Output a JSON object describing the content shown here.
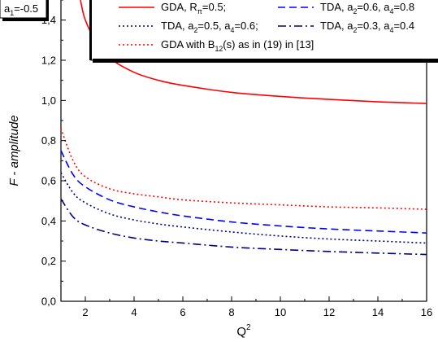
{
  "chart_data": {
    "type": "line",
    "title": "",
    "xlabel": "Q",
    "xlabel_sup": "2",
    "ylabel": "F - amplitude",
    "xlim": [
      1,
      16
    ],
    "ylim": [
      0.0,
      1.5
    ],
    "xticks": [
      2,
      4,
      6,
      8,
      10,
      12,
      14,
      16
    ],
    "xtick_labels": [
      "2",
      "4",
      "6",
      "8",
      "10",
      "12",
      "14",
      "16"
    ],
    "yticks": [
      0.0,
      0.2,
      0.4,
      0.6,
      0.8,
      1.0,
      1.2,
      1.4
    ],
    "ytick_labels": [
      "0,0",
      "0,2",
      "0,4",
      "0,6",
      "0,8",
      "1,0",
      "1,2",
      "1,4"
    ],
    "grid": false,
    "legend_position": "top-right",
    "annotation": {
      "parts": [
        {
          "t": "a",
          "s": "n"
        },
        {
          "t": "1",
          "s": "sub"
        },
        {
          "t": "=-0.5",
          "s": "n"
        }
      ]
    },
    "series": [
      {
        "name": "GDA, Rπ=0.5;",
        "legend_parts": [
          {
            "t": "GDA, R",
            "s": "n"
          },
          {
            "t": "π",
            "s": "sub"
          },
          {
            "t": "=0.5;",
            "s": "n"
          }
        ],
        "color": "#ff0000",
        "style": "solid",
        "x": [
          1.8,
          2.0,
          2.5,
          3,
          4,
          5,
          6,
          8,
          10,
          12,
          14,
          16
        ],
        "y": [
          1.5,
          1.4,
          1.28,
          1.21,
          1.14,
          1.1,
          1.075,
          1.04,
          1.02,
          1.005,
          0.993,
          0.985
        ]
      },
      {
        "name": "TDA, a2=0.6, a4=0.8",
        "legend_parts": [
          {
            "t": "TDA, a",
            "s": "n"
          },
          {
            "t": "2",
            "s": "sub"
          },
          {
            "t": "=0.6, a",
            "s": "n"
          },
          {
            "t": "4",
            "s": "sub"
          },
          {
            "t": "=0.8",
            "s": "n"
          }
        ],
        "color": "#0000ff",
        "style": "dashed",
        "x": [
          1,
          1.5,
          2,
          3,
          4,
          5,
          6,
          8,
          10,
          12,
          14,
          16
        ],
        "y": [
          0.75,
          0.63,
          0.57,
          0.505,
          0.47,
          0.445,
          0.425,
          0.395,
          0.375,
          0.36,
          0.35,
          0.34
        ]
      },
      {
        "name": "TDA, a2=0.5, a4=0.6;",
        "legend_parts": [
          {
            "t": "TDA, a",
            "s": "n"
          },
          {
            "t": "2",
            "s": "sub"
          },
          {
            "t": "=0.5, a",
            "s": "n"
          },
          {
            "t": "4",
            "s": "sub"
          },
          {
            "t": "=0.6;",
            "s": "n"
          }
        ],
        "color": "#000080",
        "style": "dotted",
        "x": [
          1,
          1.5,
          2,
          3,
          4,
          5,
          6,
          8,
          10,
          12,
          14,
          16
        ],
        "y": [
          0.64,
          0.54,
          0.49,
          0.435,
          0.405,
          0.385,
          0.37,
          0.345,
          0.325,
          0.31,
          0.3,
          0.29
        ]
      },
      {
        "name": "TDA, a2=0.3, a4=0.4",
        "legend_parts": [
          {
            "t": "TDA, a",
            "s": "n"
          },
          {
            "t": "2",
            "s": "sub"
          },
          {
            "t": "=0.3, a",
            "s": "n"
          },
          {
            "t": "4",
            "s": "sub"
          },
          {
            "t": "=0.4",
            "s": "n"
          }
        ],
        "color": "#000080",
        "style": "dashdot",
        "x": [
          1,
          1.5,
          2,
          3,
          4,
          5,
          6,
          8,
          10,
          12,
          14,
          16
        ],
        "y": [
          0.51,
          0.42,
          0.38,
          0.34,
          0.315,
          0.3,
          0.29,
          0.27,
          0.258,
          0.248,
          0.24,
          0.233
        ]
      },
      {
        "name": "GDA with B12(s) as in (19) in [13]",
        "legend_parts": [
          {
            "t": "GDA with B",
            "s": "n"
          },
          {
            "t": "12",
            "s": "sub"
          },
          {
            "t": "(s) as in (19) in [13]",
            "s": "n"
          }
        ],
        "color": "#ff0000",
        "style": "dotted",
        "x": [
          1,
          1.5,
          2,
          3,
          4,
          5,
          6,
          8,
          10,
          12,
          14,
          16
        ],
        "y": [
          0.86,
          0.7,
          0.62,
          0.56,
          0.535,
          0.52,
          0.505,
          0.49,
          0.48,
          0.47,
          0.465,
          0.458
        ]
      }
    ]
  }
}
